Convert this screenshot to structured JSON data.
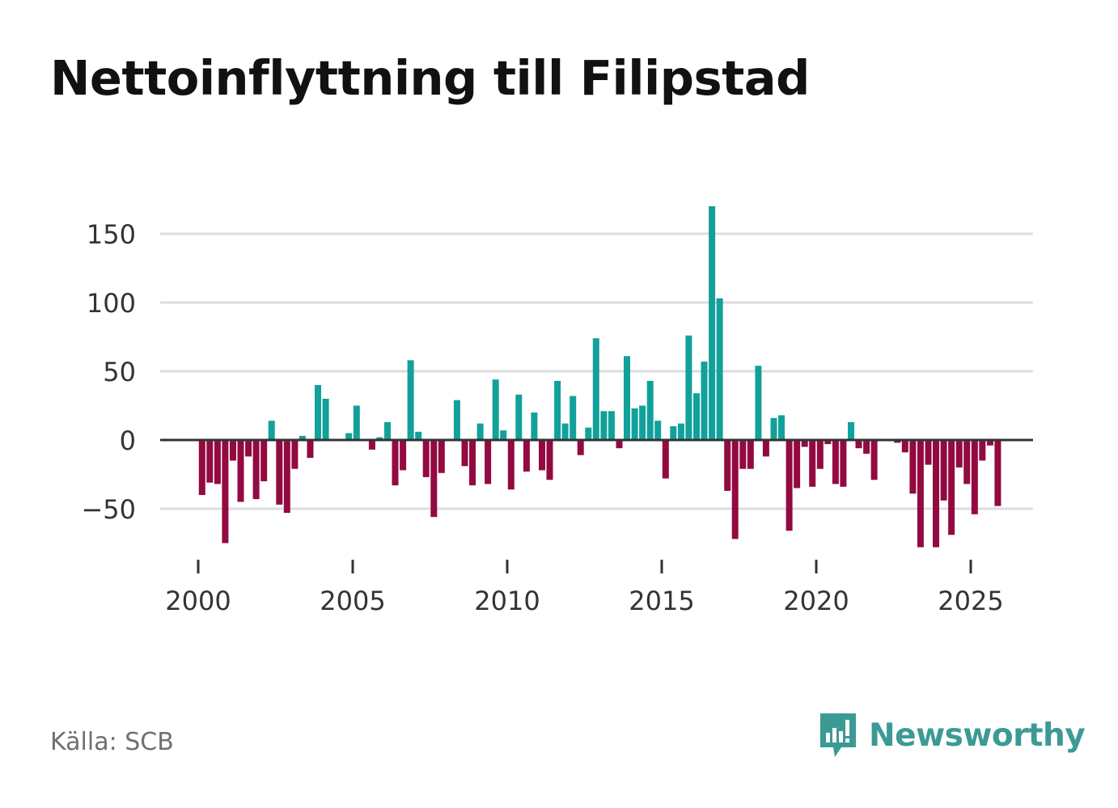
{
  "title": "Nettoinflyttning till Filipstad",
  "source": "Källa: SCB",
  "brand": {
    "name": "Newsworthy",
    "icon": "newsworthy-logo-icon"
  },
  "colors": {
    "positive": "#12a19a",
    "negative": "#930a40",
    "grid": "#dddddd",
    "axis": "#333333",
    "brand": "#3c9a94"
  },
  "chart_data": {
    "type": "bar",
    "title": "Nettoinflyttning till Filipstad",
    "xlabel": "",
    "ylabel": "",
    "ylim": [
      -80,
      175
    ],
    "xlim": [
      1999.3,
      2027.1
    ],
    "yticks": [
      150,
      100,
      50,
      0,
      -50
    ],
    "ytick_labels": [
      "150",
      "100",
      "50",
      "0",
      "−50"
    ],
    "xticks": [
      2000,
      2005,
      2010,
      2015,
      2020,
      2025
    ],
    "xtick_labels": [
      "2000",
      "2005",
      "2010",
      "2015",
      "2020",
      "2025"
    ],
    "quarter_start": 2000.0,
    "values": [
      -40,
      -31,
      -32,
      -75,
      -15,
      -45,
      -12,
      -43,
      -30,
      14,
      -47,
      -53,
      -21,
      3,
      -13,
      40,
      30,
      0,
      0,
      5,
      25,
      0,
      -7,
      2,
      13,
      -33,
      -22,
      58,
      6,
      -27,
      -56,
      -24,
      0,
      29,
      -19,
      -33,
      12,
      -32,
      44,
      7,
      -36,
      33,
      -23,
      20,
      -22,
      -29,
      43,
      12,
      32,
      -11,
      9,
      74,
      21,
      21,
      -6,
      61,
      23,
      25,
      43,
      14,
      -28,
      10,
      12,
      76,
      34,
      57,
      170,
      103,
      -37,
      -72,
      -21,
      -21,
      54,
      -12,
      16,
      18,
      -66,
      -35,
      -5,
      -34,
      -21,
      -3,
      -32,
      -34,
      13,
      -6,
      -10,
      -29,
      0,
      0,
      -2,
      -9,
      -39,
      -78,
      -18,
      -78,
      -44,
      -69,
      -20,
      -32,
      -54,
      -15,
      -4,
      -48
    ]
  }
}
